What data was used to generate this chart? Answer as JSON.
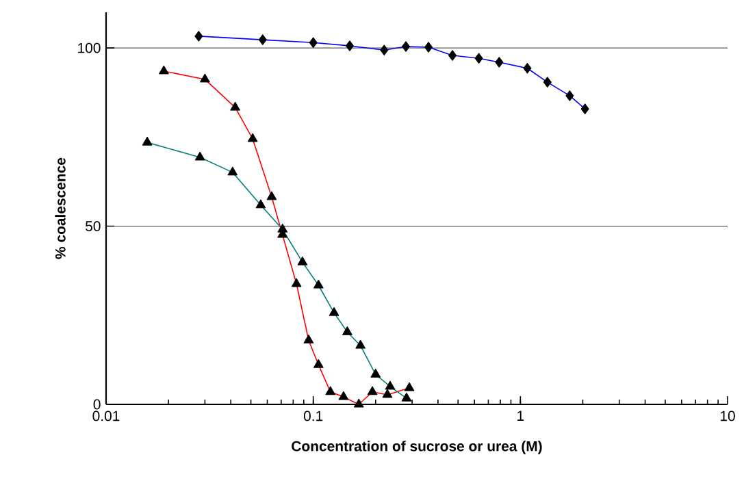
{
  "chart_data": {
    "type": "line",
    "xlabel": "Concentration of sucrose or urea (M)",
    "ylabel": "% coalescence",
    "log": "x",
    "grid": "y",
    "xlim": [
      0.01,
      10
    ],
    "ylim": [
      0,
      110
    ],
    "xticks": [
      0.01,
      0.1,
      1,
      10
    ],
    "yticks": [
      0,
      50,
      100
    ],
    "series": [
      {
        "color": "#0000ff",
        "marker": "diamond",
        "x": [
          0.028,
          0.057,
          0.1,
          0.15,
          0.22,
          0.28,
          0.36,
          0.47,
          0.63,
          0.79,
          1.08,
          1.35,
          1.73,
          2.05
        ],
        "values": [
          103.3,
          102.3,
          101.5,
          100.6,
          99.4,
          100.4,
          100.2,
          97.9,
          97.1,
          96.0,
          94.3,
          90.4,
          86.6,
          82.9
        ]
      },
      {
        "color": "#ff0000",
        "marker": "triangle",
        "x": [
          0.019,
          0.03,
          0.042,
          0.051,
          0.063,
          0.071,
          0.083,
          0.095,
          0.106,
          0.121,
          0.14,
          0.166,
          0.193,
          0.228,
          0.291
        ],
        "values": [
          93.5,
          91.2,
          83.3,
          74.5,
          58.2,
          47.6,
          33.8,
          18.0,
          11.1,
          3.5,
          2.1,
          0,
          3.5,
          2.7,
          4.6
        ]
      },
      {
        "color": "#008080",
        "marker": "triangle",
        "x": [
          0.0158,
          0.0284,
          0.0408,
          0.0558,
          0.0711,
          0.0887,
          0.106,
          0.126,
          0.146,
          0.169,
          0.2,
          0.235,
          0.282
        ],
        "values": [
          73.5,
          69.3,
          65.1,
          55.9,
          49.1,
          39.9,
          33.4,
          25.7,
          20.3,
          16.5,
          8.4,
          5.0,
          1.7
        ]
      }
    ]
  }
}
